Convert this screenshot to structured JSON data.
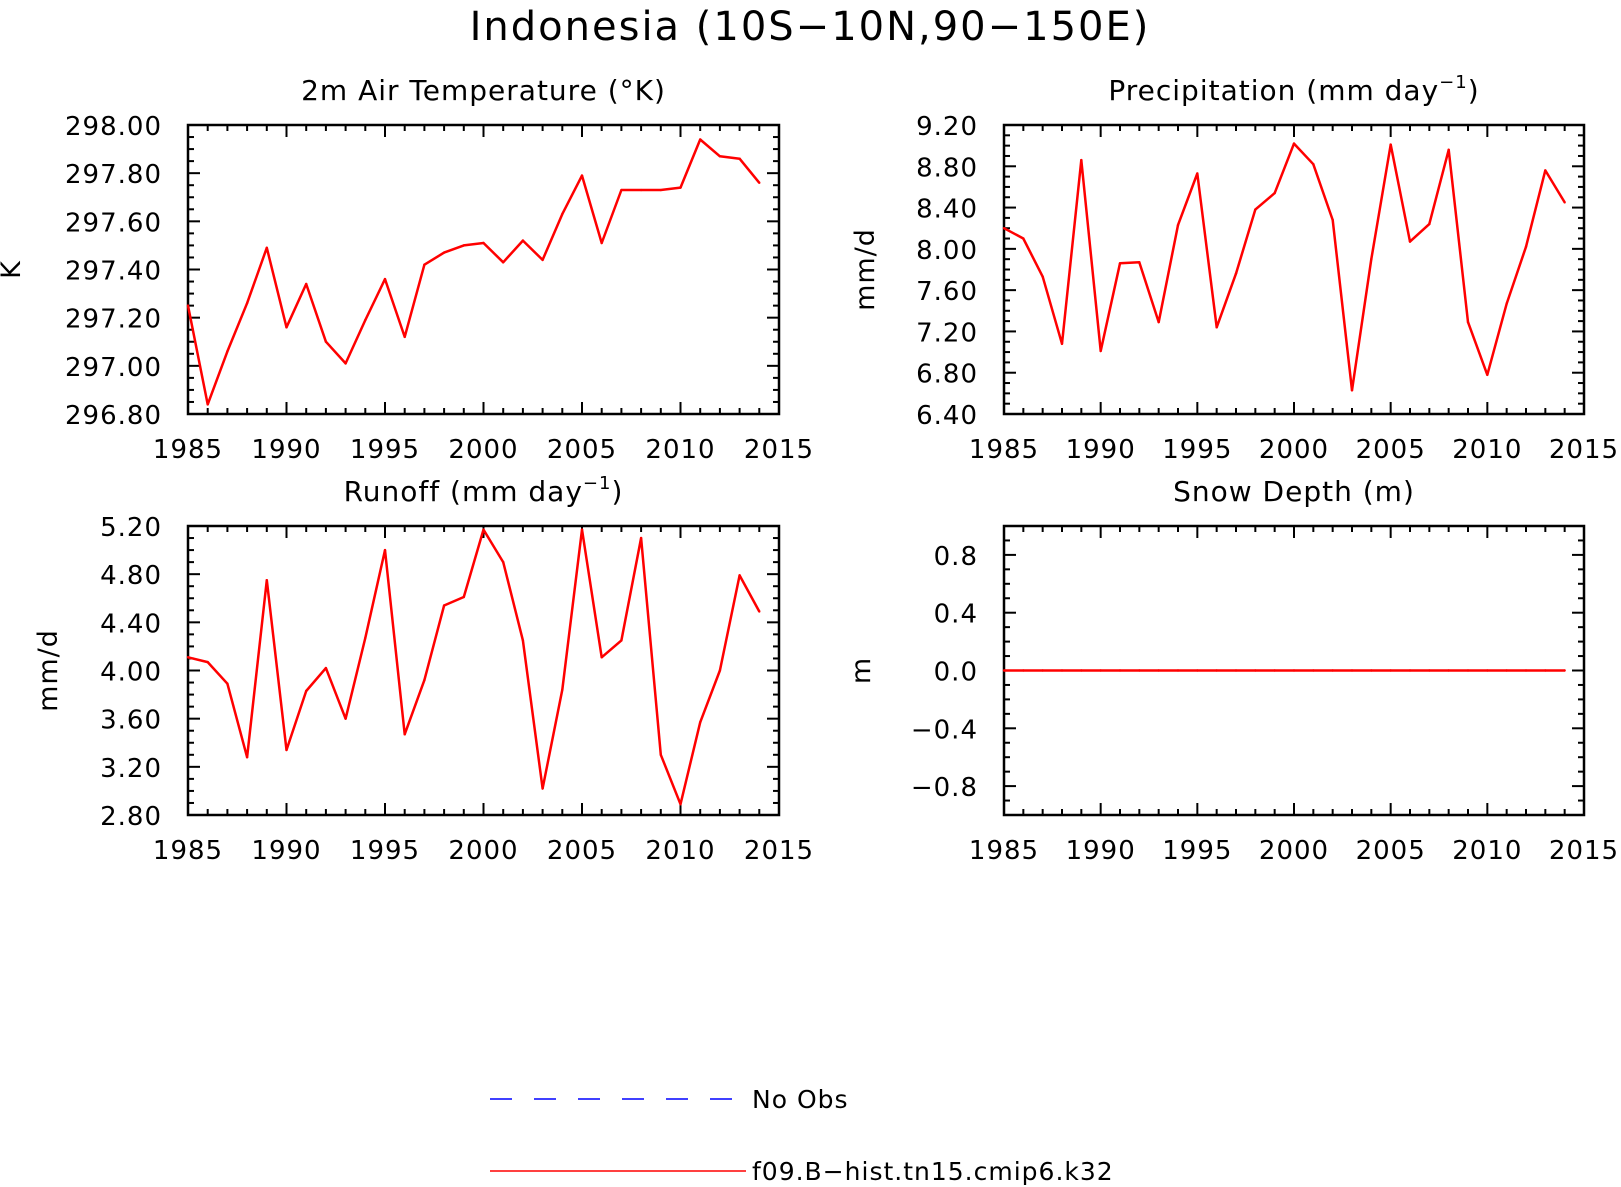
{
  "title": "Indonesia (10S−10N,90−150E)",
  "colors": {
    "model": "#ff0000",
    "obs": "#0000ff",
    "axis": "#000000"
  },
  "legend": {
    "items": [
      {
        "label": "No Obs",
        "color": "#0000ff",
        "style": "dashed"
      },
      {
        "label": "f09.B−hist.tn15.cmip6.k32",
        "color": "#ff0000",
        "style": "solid"
      }
    ]
  },
  "chart_data": [
    {
      "type": "line",
      "title": "2m Air Temperature (°K)",
      "ylabel": "K",
      "xlim": [
        1985,
        2015
      ],
      "ylim": [
        296.8,
        298.0
      ],
      "xticks": [
        "1985",
        "1990",
        "1995",
        "2000",
        "2005",
        "2010",
        "2015"
      ],
      "yticks": [
        "296.80",
        "297.00",
        "297.20",
        "297.40",
        "297.60",
        "297.80",
        "298.00"
      ],
      "series": [
        {
          "name": "f09.B−hist.tn15.cmip6.k32",
          "x": [
            1985,
            1986,
            1987,
            1988,
            1989,
            1990,
            1991,
            1992,
            1993,
            1994,
            1995,
            1996,
            1997,
            1998,
            1999,
            2000,
            2001,
            2002,
            2003,
            2004,
            2005,
            2006,
            2007,
            2008,
            2009,
            2010,
            2011,
            2012,
            2013,
            2014
          ],
          "values": [
            297.25,
            296.84,
            297.06,
            297.26,
            297.49,
            297.16,
            297.34,
            297.1,
            297.01,
            297.19,
            297.36,
            297.12,
            297.42,
            297.47,
            297.5,
            297.51,
            297.43,
            297.52,
            297.44,
            297.63,
            297.79,
            297.51,
            297.73,
            297.73,
            297.73,
            297.74,
            297.94,
            297.87,
            297.86,
            297.76
          ]
        }
      ]
    },
    {
      "type": "line",
      "title": "Precipitation (mm day",
      "title_sup": "−1",
      "title_end": ")",
      "ylabel": "mm/d",
      "xlim": [
        1985,
        2015
      ],
      "ylim": [
        6.4,
        9.2
      ],
      "xticks": [
        "1985",
        "1990",
        "1995",
        "2000",
        "2005",
        "2010",
        "2015"
      ],
      "yticks": [
        "6.40",
        "6.80",
        "7.20",
        "7.60",
        "8.00",
        "8.40",
        "8.80",
        "9.20"
      ],
      "series": [
        {
          "name": "f09.B−hist.tn15.cmip6.k32",
          "x": [
            1985,
            1986,
            1987,
            1988,
            1989,
            1990,
            1991,
            1992,
            1993,
            1994,
            1995,
            1996,
            1997,
            1998,
            1999,
            2000,
            2001,
            2002,
            2003,
            2004,
            2005,
            2006,
            2007,
            2008,
            2009,
            2010,
            2011,
            2012,
            2013,
            2014
          ],
          "values": [
            8.2,
            8.1,
            7.73,
            7.08,
            8.86,
            7.01,
            7.86,
            7.87,
            7.29,
            8.23,
            8.73,
            7.24,
            7.76,
            8.38,
            8.54,
            9.02,
            8.82,
            8.28,
            6.63,
            7.9,
            9.01,
            8.07,
            8.24,
            8.96,
            7.29,
            6.78,
            7.47,
            8.02,
            8.76,
            8.45
          ]
        }
      ]
    },
    {
      "type": "line",
      "title": "Runoff (mm day",
      "title_sup": "−1",
      "title_end": ")",
      "ylabel": "mm/d",
      "xlim": [
        1985,
        2015
      ],
      "ylim": [
        2.8,
        5.2
      ],
      "xticks": [
        "1985",
        "1990",
        "1995",
        "2000",
        "2005",
        "2010",
        "2015"
      ],
      "yticks": [
        "2.80",
        "3.20",
        "3.60",
        "4.00",
        "4.40",
        "4.80",
        "5.20"
      ],
      "series": [
        {
          "name": "f09.B−hist.tn15.cmip6.k32",
          "x": [
            1985,
            1986,
            1987,
            1988,
            1989,
            1990,
            1991,
            1992,
            1993,
            1994,
            1995,
            1996,
            1997,
            1998,
            1999,
            2000,
            2001,
            2002,
            2003,
            2004,
            2005,
            2006,
            2007,
            2008,
            2009,
            2010,
            2011,
            2012,
            2013,
            2014
          ],
          "values": [
            4.11,
            4.07,
            3.89,
            3.28,
            4.75,
            3.34,
            3.83,
            4.02,
            3.6,
            4.27,
            5.0,
            3.47,
            3.92,
            4.54,
            4.61,
            5.17,
            4.9,
            4.25,
            3.02,
            3.84,
            5.17,
            4.11,
            4.25,
            5.1,
            3.3,
            2.89,
            3.57,
            4.0,
            4.79,
            4.49
          ]
        }
      ]
    },
    {
      "type": "line",
      "title": "Snow Depth (m)",
      "ylabel": "m",
      "xlim": [
        1985,
        2015
      ],
      "ylim": [
        -1.0,
        1.0
      ],
      "xticks": [
        "1985",
        "1990",
        "1995",
        "2000",
        "2005",
        "2010",
        "2015"
      ],
      "yticks": [
        "−0.8",
        "−0.4",
        "0.0",
        "0.4",
        "0.8"
      ],
      "ytick_values": [
        -0.8,
        -0.4,
        0.0,
        0.4,
        0.8
      ],
      "series": [
        {
          "name": "f09.B−hist.tn15.cmip6.k32",
          "x": [
            1985,
            1986,
            1987,
            1988,
            1989,
            1990,
            1991,
            1992,
            1993,
            1994,
            1995,
            1996,
            1997,
            1998,
            1999,
            2000,
            2001,
            2002,
            2003,
            2004,
            2005,
            2006,
            2007,
            2008,
            2009,
            2010,
            2011,
            2012,
            2013,
            2014
          ],
          "values": [
            0,
            0,
            0,
            0,
            0,
            0,
            0,
            0,
            0,
            0,
            0,
            0,
            0,
            0,
            0,
            0,
            0,
            0,
            0,
            0,
            0,
            0,
            0,
            0,
            0,
            0,
            0,
            0,
            0,
            0
          ]
        }
      ]
    }
  ]
}
